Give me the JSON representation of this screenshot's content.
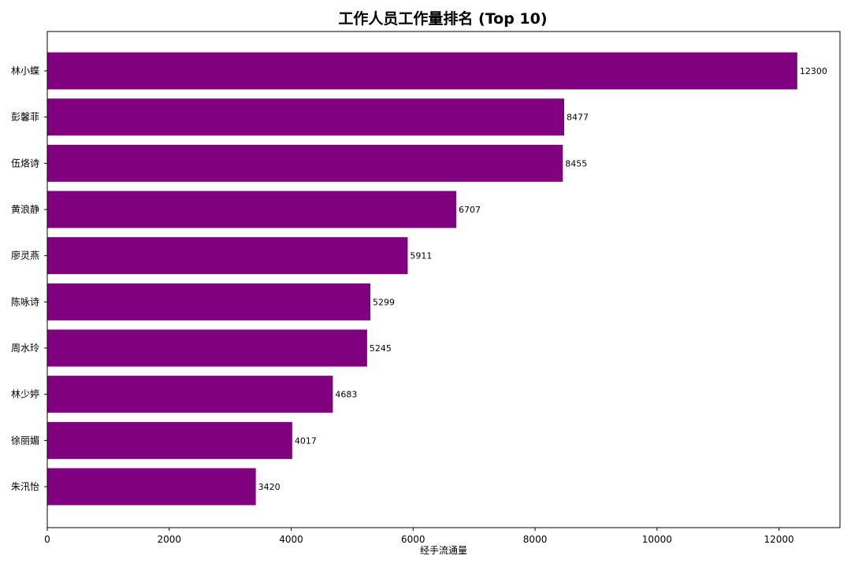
{
  "chart_data": {
    "type": "bar",
    "orientation": "horizontal",
    "title": "工作人员工作量排名 (Top 10)",
    "xlabel": "经手流通量",
    "ylabel": "",
    "categories": [
      "林小蝶",
      "彭馨菲",
      "伍烙诗",
      "黄浪静",
      "廖灵燕",
      "陈咏诗",
      "周水玲",
      "林少婷",
      "徐丽媚",
      "朱汛怡"
    ],
    "values": [
      12300,
      8477,
      8455,
      6707,
      5911,
      5299,
      5245,
      4683,
      4017,
      3420
    ],
    "data_labels": [
      "12300",
      "8477",
      "8455",
      "6707",
      "5911",
      "5299",
      "5245",
      "4683",
      "4017",
      "3420"
    ],
    "xlim": [
      0,
      13000
    ],
    "xticks": [
      0,
      2000,
      4000,
      6000,
      8000,
      10000,
      12000
    ],
    "xtick_labels": [
      "0",
      "2000",
      "4000",
      "6000",
      "8000",
      "10000",
      "12000"
    ],
    "grid": false,
    "legend": "none",
    "bar_color": "#800080"
  }
}
